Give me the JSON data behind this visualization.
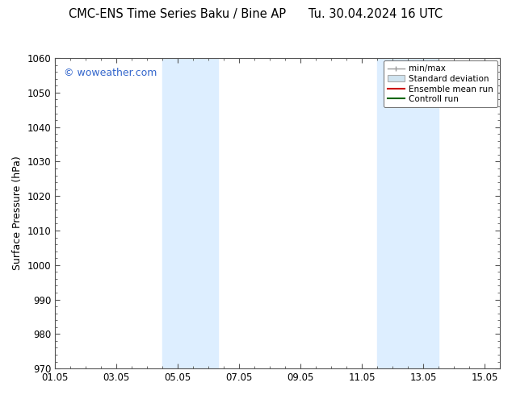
{
  "title_left": "CMC-ENS Time Series Baku / Bine AP",
  "title_right": "Tu. 30.04.2024 16 UTC",
  "ylabel": "Surface Pressure (hPa)",
  "ylim": [
    970,
    1060
  ],
  "yticks": [
    970,
    980,
    990,
    1000,
    1010,
    1020,
    1030,
    1040,
    1050,
    1060
  ],
  "xtick_labels": [
    "01.05",
    "03.05",
    "05.05",
    "07.05",
    "09.05",
    "11.05",
    "13.05",
    "15.05"
  ],
  "xtick_positions": [
    0,
    2,
    4,
    6,
    8,
    10,
    12,
    14
  ],
  "xlim": [
    0,
    14.5
  ],
  "shaded_regions": [
    {
      "x_start": 3.5,
      "x_end": 5.3,
      "color": "#ddeeff"
    },
    {
      "x_start": 10.5,
      "x_end": 12.5,
      "color": "#ddeeff"
    }
  ],
  "watermark_text": "© woweather.com",
  "watermark_color": "#3366cc",
  "background_color": "#ffffff",
  "spine_color": "#555555",
  "legend_fontsize": 7.5,
  "title_fontsize": 10.5,
  "axis_label_fontsize": 9,
  "tick_fontsize": 8.5
}
